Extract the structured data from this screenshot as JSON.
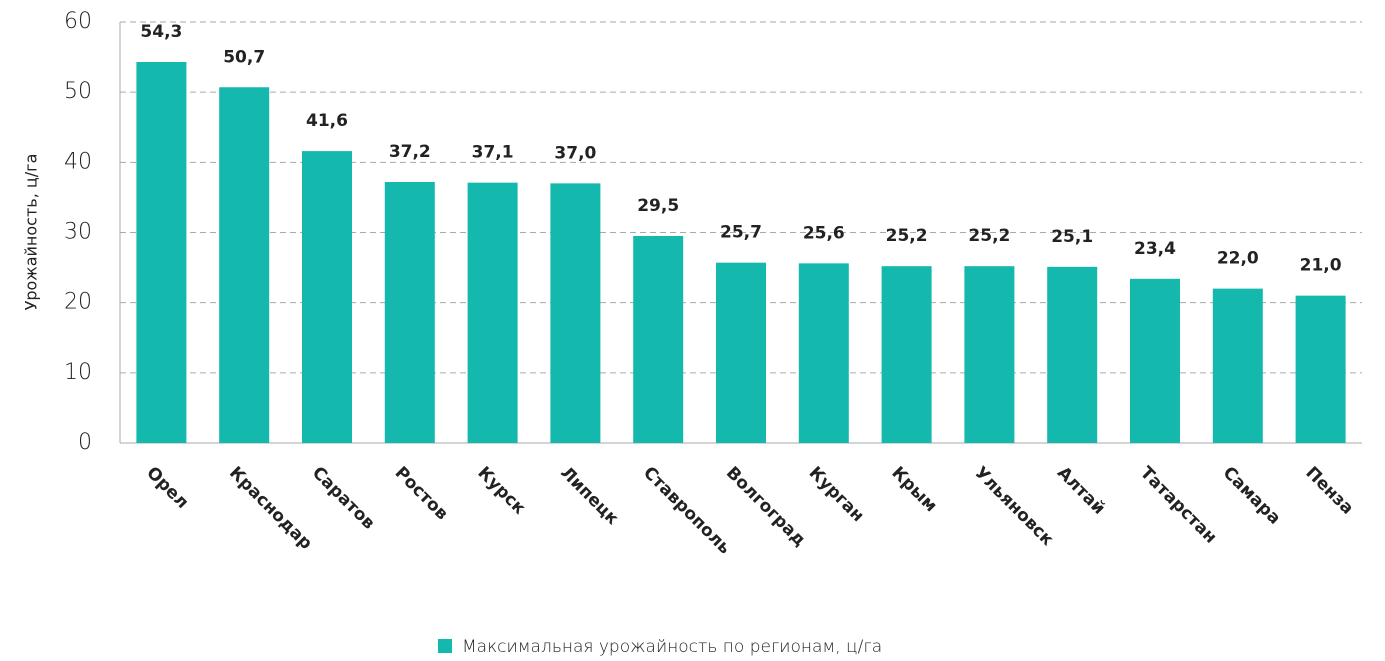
{
  "chart_data": {
    "type": "bar",
    "y_axis_label": "Урожайность, ц/га",
    "categories": [
      "Орел",
      "Краснодар",
      "Саратов",
      "Ростов",
      "Курск",
      "Липецк",
      "Ставрополь",
      "Волгоград",
      "Курган",
      "Крым",
      "Ульяновск",
      "Алтай",
      "Татарстан",
      "Самара",
      "Пенза"
    ],
    "series": [
      {
        "name": "Максимальная урожайность по регионам, ц/га",
        "color": "#14b8ac",
        "values": [
          54.3,
          50.7,
          41.6,
          37.2,
          37.1,
          37.0,
          29.5,
          25.7,
          25.6,
          25.2,
          25.2,
          25.1,
          23.4,
          22.0,
          21.0
        ],
        "value_labels": [
          "54,3",
          "50,7",
          "41,6",
          "37,2",
          "37,1",
          "37,0",
          "29,5",
          "25,7",
          "25,6",
          "25,2",
          "25,2",
          "25,1",
          "23,4",
          "22,0",
          "21,0"
        ]
      }
    ],
    "ylim": [
      0,
      60
    ],
    "yticks": [
      0,
      10,
      20,
      30,
      40,
      50,
      60
    ],
    "grid": true,
    "legend": "bottom"
  }
}
